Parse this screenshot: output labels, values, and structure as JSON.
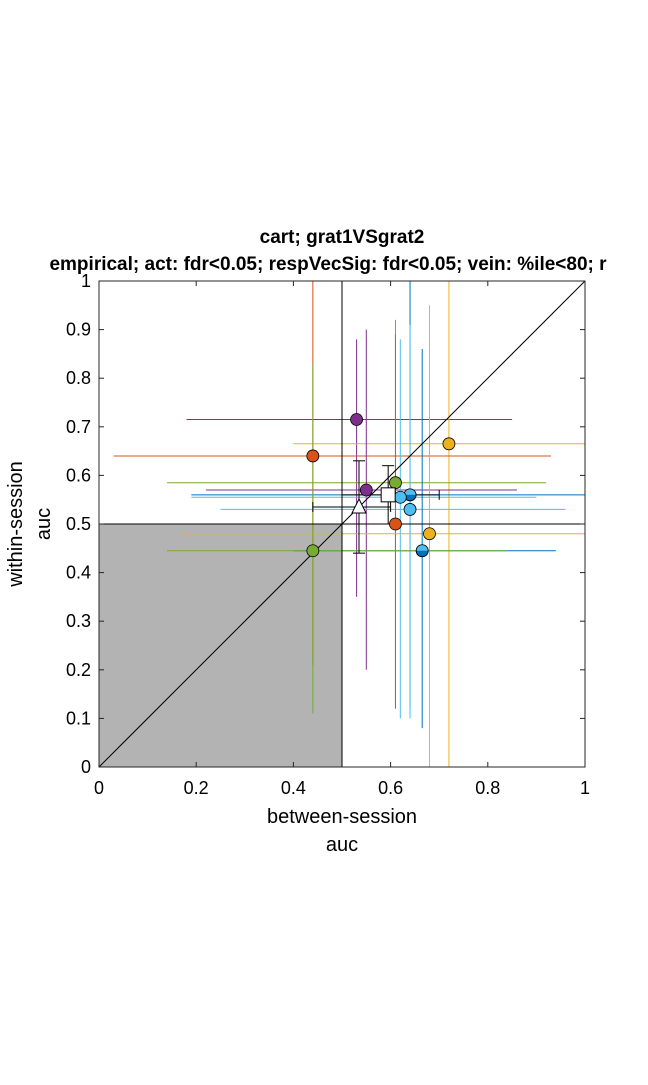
{
  "chart_data": {
    "type": "scatter",
    "title": "cart; grat1VSgrat2",
    "subtitle": "empirical; act: fdr<0.05; respVecSig: fdr<0.05; vein: %ile<80; r",
    "xlabel_line1": "between-session",
    "xlabel_line2": "auc",
    "ylabel_line1": "within-session",
    "ylabel_line2": "auc",
    "xlim": [
      0,
      1
    ],
    "ylim": [
      0,
      1
    ],
    "x_ticks": [
      "0",
      "0.2",
      "0.4",
      "0.6",
      "0.8",
      "1"
    ],
    "y_ticks": [
      "0",
      "0.1",
      "0.2",
      "0.3",
      "0.4",
      "0.5",
      "0.6",
      "0.7",
      "0.8",
      "0.9",
      "1"
    ],
    "grid": false,
    "shaded_region": {
      "x": [
        0,
        0.5
      ],
      "y": [
        0,
        0.5
      ],
      "color": "#b3b3b3"
    },
    "reference_lines": {
      "x": 0.5,
      "y": 0.5,
      "diagonal": true
    },
    "points": [
      {
        "x": 0.53,
        "y": 0.715,
        "x_err": [
          0.18,
          0.85
        ],
        "y_err": [
          0.35,
          0.88
        ],
        "color": "#7E2F8E",
        "half": false
      },
      {
        "x": 0.72,
        "y": 0.665,
        "x_err": [
          0.4,
          1.0
        ],
        "y_err": [
          0.0,
          1.0
        ],
        "color": "#EDB120",
        "half": false
      },
      {
        "x": 0.44,
        "y": 0.64,
        "x_err": [
          0.03,
          0.93
        ],
        "y_err": [
          0.21,
          1.0
        ],
        "color": "#D95319",
        "half": false
      },
      {
        "x": 0.61,
        "y": 0.585,
        "x_err": [
          0.14,
          0.92
        ],
        "y_err": [
          0.12,
          0.92
        ],
        "color": "#77AC30",
        "half": false
      },
      {
        "x": 0.55,
        "y": 0.57,
        "x_err": [
          0.22,
          0.86
        ],
        "y_err": [
          0.2,
          0.9
        ],
        "color": "#7E2F8E",
        "half": false
      },
      {
        "x": 0.64,
        "y": 0.56,
        "x_err": [
          0.19,
          1.0
        ],
        "y_err": [
          0.12,
          1.0
        ],
        "color": "#0072BD",
        "half": true
      },
      {
        "x": 0.62,
        "y": 0.555,
        "x_err": [
          0.19,
          0.9
        ],
        "y_err": [
          0.1,
          0.88
        ],
        "color": "#4DBEEE",
        "half": false
      },
      {
        "x": 0.64,
        "y": 0.53,
        "x_err": [
          0.25,
          0.96
        ],
        "y_err": [
          0.1,
          0.91
        ],
        "color": "#4DBEEE",
        "half": false
      },
      {
        "x": 0.61,
        "y": 0.5,
        "x_err": [
          0.15,
          0.93
        ],
        "y_err": [
          0.12,
          0.89
        ],
        "color": "#D95319",
        "half": false
      },
      {
        "x": 0.68,
        "y": 0.48,
        "x_err": [
          0.17,
          1.0
        ],
        "y_err": [
          0.0,
          0.95
        ],
        "color": "#EDB120",
        "half": false
      },
      {
        "x": 0.665,
        "y": 0.445,
        "x_err": [
          0.4,
          0.94
        ],
        "y_err": [
          0.08,
          0.86
        ],
        "color": "#0072BD",
        "half": true
      },
      {
        "x": 0.44,
        "y": 0.445,
        "x_err": [
          0.14,
          0.84
        ],
        "y_err": [
          0.11,
          0.83
        ],
        "color": "#77AC30",
        "half": false
      }
    ],
    "summary": {
      "square": {
        "x": 0.595,
        "y": 0.56,
        "x_err": [
          0.5,
          0.7
        ],
        "y_err": [
          0.5,
          0.62
        ]
      },
      "triangle": {
        "x": 0.535,
        "y": 0.535,
        "x_err": [
          0.44,
          0.6
        ],
        "y_err": [
          0.44,
          0.63
        ]
      }
    }
  }
}
